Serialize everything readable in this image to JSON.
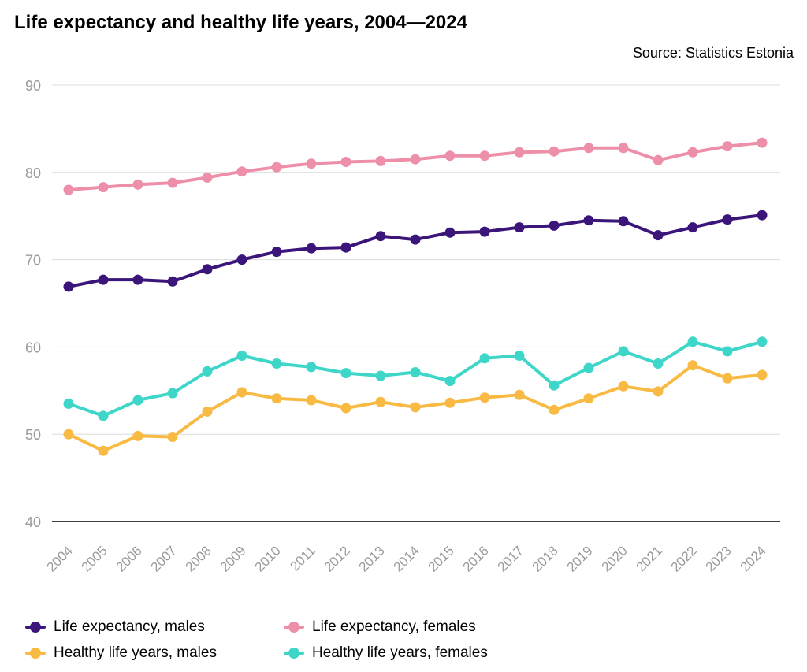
{
  "title": "Life expectancy and healthy life years, 2004—2024",
  "source": "Source: Statistics Estonia",
  "chart_data": {
    "type": "line",
    "title": "Life expectancy and healthy life years, 2004—2024",
    "xlabel": "",
    "ylabel": "",
    "ylim": [
      40,
      90
    ],
    "yticks": [
      40,
      50,
      60,
      70,
      80,
      90
    ],
    "grid": true,
    "legend_position": "bottom",
    "categories": [
      "2004",
      "2005",
      "2006",
      "2007",
      "2008",
      "2009",
      "2010",
      "2011",
      "2012",
      "2013",
      "2014",
      "2015",
      "2016",
      "2017",
      "2018",
      "2019",
      "2020",
      "2021",
      "2022",
      "2023",
      "2024"
    ],
    "series": [
      {
        "name": "Life expectancy, males",
        "color": "#3b157a",
        "values": [
          66.9,
          67.7,
          67.7,
          67.5,
          68.9,
          70.0,
          70.9,
          71.3,
          71.4,
          72.7,
          72.3,
          73.1,
          73.2,
          73.7,
          73.9,
          74.5,
          74.4,
          72.8,
          73.7,
          74.6,
          75.1
        ]
      },
      {
        "name": "Life expectancy, females",
        "color": "#ee8fa9",
        "values": [
          78.0,
          78.3,
          78.6,
          78.8,
          79.4,
          80.1,
          80.6,
          81.0,
          81.2,
          81.3,
          81.5,
          81.9,
          81.9,
          82.3,
          82.4,
          82.8,
          82.8,
          81.4,
          82.3,
          83.0,
          83.4
        ]
      },
      {
        "name": "Healthy life years, males",
        "color": "#f9ba43",
        "values": [
          50.0,
          48.1,
          49.8,
          49.7,
          52.6,
          54.8,
          54.1,
          53.9,
          53.0,
          53.7,
          53.1,
          53.6,
          54.2,
          54.5,
          52.8,
          54.1,
          55.5,
          54.9,
          57.9,
          56.4,
          56.8
        ]
      },
      {
        "name": "Healthy life years, females",
        "color": "#3dd6c8",
        "values": [
          53.5,
          52.1,
          53.9,
          54.7,
          57.2,
          59.0,
          58.1,
          57.7,
          57.0,
          56.7,
          57.1,
          56.1,
          58.7,
          59.0,
          55.6,
          57.6,
          59.5,
          58.1,
          60.6,
          59.5,
          60.6
        ]
      }
    ]
  }
}
